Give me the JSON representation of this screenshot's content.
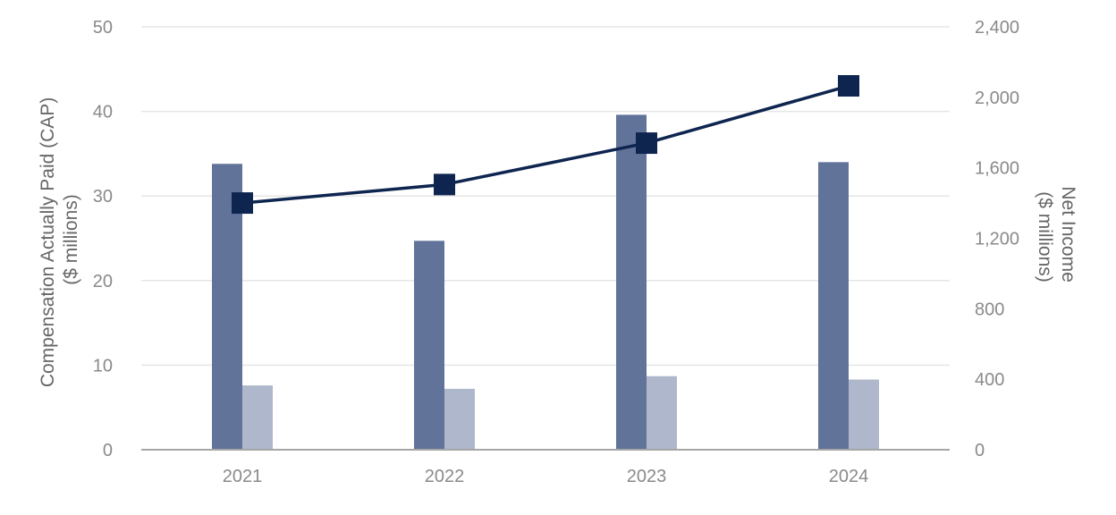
{
  "chart_data": {
    "type": "bar",
    "categories": [
      "2021",
      "2022",
      "2023",
      "2024"
    ],
    "series": [
      {
        "axis": "left",
        "type": "bar",
        "values": [
          33.8,
          24.7,
          39.6,
          34.0
        ],
        "color": "#62739a"
      },
      {
        "axis": "left",
        "type": "bar",
        "values": [
          7.6,
          7.2,
          8.7,
          8.3
        ],
        "color": "#aeb7cb"
      },
      {
        "axis": "right",
        "type": "line",
        "values": [
          1400,
          1505,
          1740,
          2065
        ],
        "color": "#0e2550",
        "marker": "square"
      }
    ],
    "yaxis_left": {
      "title_line1": "Compensation Actually Paid (CAP)",
      "title_line2": "($ millions)",
      "range": [
        0,
        50
      ],
      "ticks": [
        0,
        10,
        20,
        30,
        40,
        50
      ],
      "tick_labels": [
        "0",
        "10",
        "20",
        "30",
        "40",
        "50"
      ]
    },
    "yaxis_right": {
      "title_line1": "Net Income",
      "title_line2": "($ millions)",
      "range": [
        0,
        2400
      ],
      "ticks": [
        0,
        400,
        800,
        1200,
        1600,
        2000,
        2400
      ],
      "tick_labels": [
        "0",
        "400",
        "800",
        "1,200",
        "1,600",
        "2,000",
        "2,400"
      ]
    },
    "grid": true,
    "legend": "none"
  }
}
